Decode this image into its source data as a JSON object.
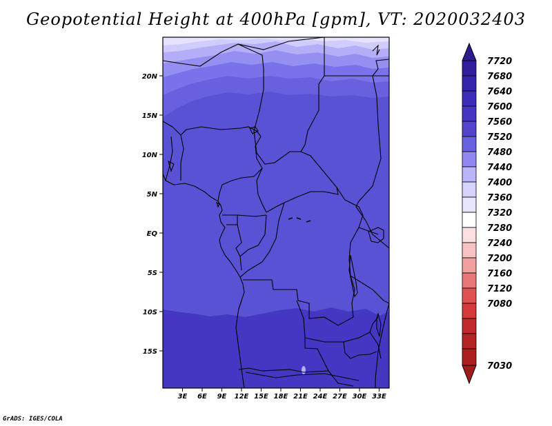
{
  "title": "Geopotential Height at 400hPa [gpm], VT: 2020032403",
  "footer": "GrADS: IGES/COLA",
  "map": {
    "lon_labels": [
      "3E",
      "6E",
      "9E",
      "12E",
      "15E",
      "18E",
      "21E",
      "24E",
      "27E",
      "30E",
      "33E"
    ],
    "lat_labels": [
      "20N",
      "15N",
      "10N",
      "5N",
      "EQ",
      "5S",
      "10S",
      "15S"
    ],
    "extent": {
      "lon": [
        0,
        34.5
      ],
      "lat": [
        -19.5,
        24.5
      ]
    }
  },
  "colorbar": {
    "levels": [
      "7720",
      "7680",
      "7640",
      "7600",
      "7560",
      "7520",
      "7480",
      "7440",
      "7400",
      "7360",
      "7320",
      "7280",
      "7240",
      "7200",
      "7160",
      "7120",
      "7080",
      "7030"
    ],
    "colors": [
      "#2a1c8a",
      "#2f1f9e",
      "#3525ad",
      "#3b2db8",
      "#4438c3",
      "#5045cc",
      "#6a61e0",
      "#9088f2",
      "#bab5fa",
      "#e2e0fd",
      "#ffffff",
      "#fbe0e0",
      "#f7c2c2",
      "#f0a0a0",
      "#e87878",
      "#df5252",
      "#d43a3a",
      "#c12a2a",
      "#ab1f1f"
    ]
  },
  "field": {
    "zones": [
      "#e6e4fd",
      "#d0ccfb",
      "#b4aef8",
      "#968ff2",
      "#7a72ea",
      "#6860de",
      "#5a52d5",
      "#4b41cc",
      "#4438c3"
    ],
    "zone_values": [
      "7420-7440",
      "7440-7460",
      "7460-7480",
      "7480-7500",
      "7500-7520",
      "7520-7540",
      "7540-7560",
      "7560-7580",
      "7580-7600"
    ]
  }
}
